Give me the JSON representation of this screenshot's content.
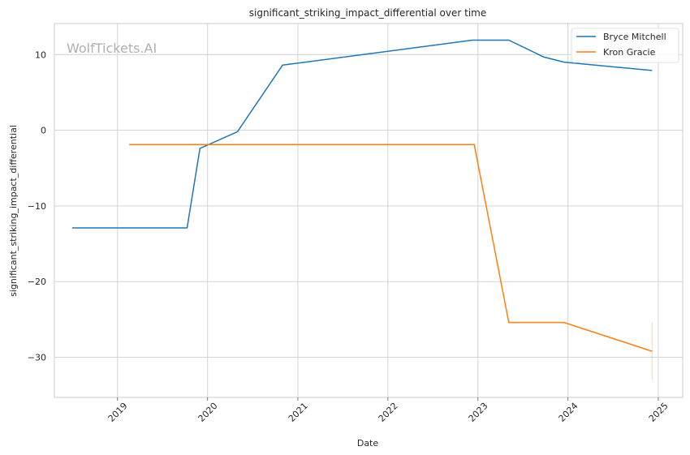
{
  "chart_data": {
    "type": "line",
    "title": "significant_striking_impact_differential over time",
    "xlabel": "Date",
    "ylabel": "significant_striking_impact_differential",
    "watermark": "WolfTickets.AI",
    "xlim": [
      "2018-04-20",
      "2025-04-10"
    ],
    "ylim": [
      -35.3,
      14.1
    ],
    "x_ticks": [
      {
        "date": "2019-01-01",
        "label": "2019"
      },
      {
        "date": "2020-01-01",
        "label": "2020"
      },
      {
        "date": "2021-01-01",
        "label": "2021"
      },
      {
        "date": "2022-01-01",
        "label": "2022"
      },
      {
        "date": "2023-01-01",
        "label": "2023"
      },
      {
        "date": "2024-01-01",
        "label": "2024"
      },
      {
        "date": "2025-01-01",
        "label": "2025"
      }
    ],
    "y_ticks": [
      {
        "value": 10,
        "label": "10"
      },
      {
        "value": 0,
        "label": "0"
      },
      {
        "value": -10,
        "label": "−10"
      },
      {
        "value": -20,
        "label": "−20"
      },
      {
        "value": -30,
        "label": "−30"
      }
    ],
    "grid": true,
    "legend_position": "top-right",
    "series": [
      {
        "name": "Bryce Mitchell",
        "color": "#1f77b4",
        "points": [
          {
            "x": "2018-07-01",
            "y": -12.9
          },
          {
            "x": "2019-10-10",
            "y": -12.9
          },
          {
            "x": "2019-12-01",
            "y": -2.4
          },
          {
            "x": "2020-05-01",
            "y": -0.2
          },
          {
            "x": "2020-10-31",
            "y": 8.6
          },
          {
            "x": "2022-12-10",
            "y": 11.9
          },
          {
            "x": "2023-05-06",
            "y": 11.9
          },
          {
            "x": "2023-09-23",
            "y": 9.7
          },
          {
            "x": "2023-12-16",
            "y": 9.0
          },
          {
            "x": "2024-12-07",
            "y": 7.9
          }
        ]
      },
      {
        "name": "Kron Gracie",
        "color": "#ff7f0e",
        "points": [
          {
            "x": "2019-02-17",
            "y": -1.9
          },
          {
            "x": "2022-12-17",
            "y": -1.9
          },
          {
            "x": "2023-05-06",
            "y": -25.4
          },
          {
            "x": "2023-12-16",
            "y": -25.4
          },
          {
            "x": "2024-12-07",
            "y": -29.2
          }
        ],
        "error_band": {
          "x": "2024-12-07",
          "low": -33.0,
          "high": -25.4
        }
      }
    ]
  }
}
